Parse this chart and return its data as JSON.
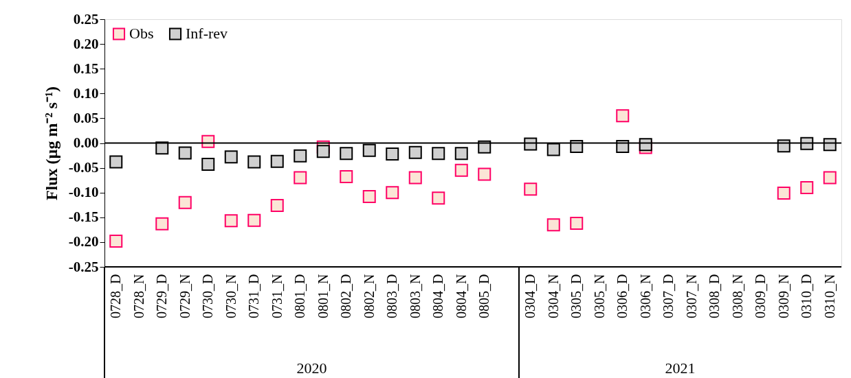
{
  "chart_data": {
    "type": "scatter",
    "ylabel": "Flux (µg m⁻² s⁻¹)",
    "categories": [
      "0728_D",
      "0728_N",
      "0729_D",
      "0729_N",
      "0730_D",
      "0730_N",
      "0731_D",
      "0731_N",
      "0801_D",
      "0801_N",
      "0802_D",
      "0802_N",
      "0803_D",
      "0803_N",
      "0804_D",
      "0804_N",
      "0805_D",
      null,
      "0304_D",
      "0304_N",
      "0305_D",
      "0305_N",
      "0306_D",
      "0306_N",
      "0307_D",
      "0307_N",
      "0308_D",
      "0308_N",
      "0309_D",
      "0309_N",
      "0310_D",
      "0310_N"
    ],
    "series": [
      {
        "name": "Obs",
        "color": "#fbe5d6",
        "values": [
          -0.198,
          null,
          -0.163,
          -0.12,
          0.003,
          -0.157,
          -0.156,
          -0.126,
          -0.07,
          -0.008,
          -0.068,
          -0.108,
          -0.1,
          -0.07,
          -0.111,
          -0.055,
          -0.063,
          null,
          -0.093,
          -0.165,
          -0.162,
          null,
          0.055,
          -0.009,
          null,
          null,
          null,
          null,
          null,
          -0.101,
          -0.09,
          -0.07
        ]
      },
      {
        "name": "Inf-rev",
        "color": "#d0d0d0",
        "values": [
          -0.038,
          null,
          -0.01,
          -0.02,
          -0.043,
          -0.028,
          -0.038,
          -0.037,
          -0.026,
          -0.017,
          -0.021,
          -0.015,
          -0.022,
          -0.019,
          -0.021,
          -0.021,
          -0.008,
          null,
          -0.002,
          -0.013,
          -0.007,
          null,
          -0.007,
          -0.003,
          null,
          null,
          null,
          null,
          null,
          -0.006,
          -0.001,
          -0.003
        ]
      }
    ],
    "ylim": [
      -0.25,
      0.25
    ],
    "yticks": [
      {
        "value": -0.25,
        "label": "-0.25"
      },
      {
        "value": -0.2,
        "label": "-0.20"
      },
      {
        "value": -0.15,
        "label": "-0.15"
      },
      {
        "value": -0.1,
        "label": "-0.10"
      },
      {
        "value": -0.05,
        "label": "-0.05"
      },
      {
        "value": 0,
        "label": "0.00"
      },
      {
        "value": 0.05,
        "label": "0.05"
      },
      {
        "value": 0.1,
        "label": "0.10"
      },
      {
        "value": 0.15,
        "label": "0.15"
      },
      {
        "value": 0.2,
        "label": "0.20"
      },
      {
        "value": 0.25,
        "label": "0.25"
      }
    ],
    "ref_lines": [
      {
        "axis": "y",
        "value": 0,
        "color": "#000000"
      }
    ],
    "annotations": [
      "2020",
      "2021"
    ],
    "marker": "square",
    "legend": "top left",
    "grid": false
  }
}
